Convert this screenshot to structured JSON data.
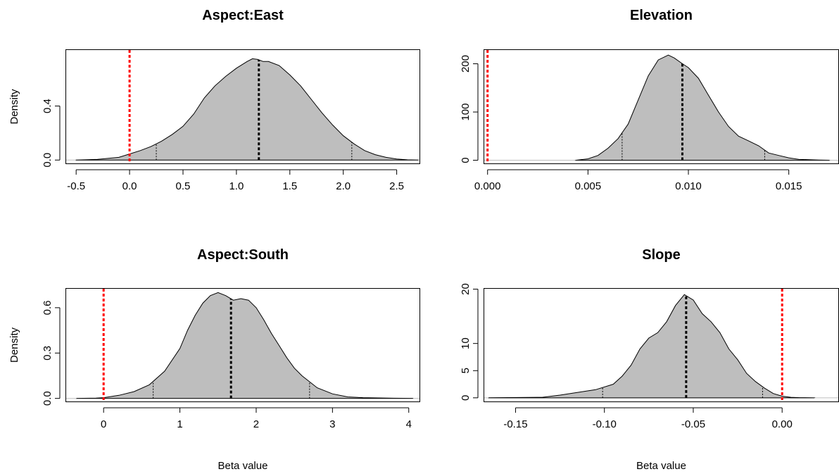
{
  "colors": {
    "fill": "#bebebe",
    "outline": "#000000",
    "zero_line": "#ff0000",
    "baseline": "#bebebe"
  },
  "chart_data": [
    {
      "type": "area",
      "title": "Aspect:East",
      "xlabel": "",
      "ylabel": "Density",
      "xlim": [
        -0.6,
        2.72
      ],
      "ylim": [
        -0.03,
        0.82
      ],
      "xticks": [
        -0.5,
        0.0,
        0.5,
        1.0,
        1.5,
        2.0,
        2.5
      ],
      "xtick_labels": [
        "-0.5",
        "0.0",
        "0.5",
        "1.0",
        "1.5",
        "2.0",
        "2.5"
      ],
      "yticks": [
        0.0,
        0.4
      ],
      "ytick_labels": [
        "0.0",
        "0.4"
      ],
      "grid": false,
      "legend": "none",
      "density": {
        "x": [
          -0.5,
          -0.3,
          -0.1,
          0.0,
          0.1,
          0.2,
          0.3,
          0.4,
          0.5,
          0.6,
          0.7,
          0.8,
          0.9,
          1.0,
          1.1,
          1.15,
          1.2,
          1.25,
          1.3,
          1.4,
          1.5,
          1.6,
          1.7,
          1.8,
          1.9,
          2.0,
          2.1,
          2.2,
          2.3,
          2.4,
          2.5,
          2.6,
          2.7
        ],
        "y": [
          0.0,
          0.005,
          0.02,
          0.045,
          0.07,
          0.1,
          0.14,
          0.19,
          0.25,
          0.34,
          0.46,
          0.55,
          0.62,
          0.68,
          0.73,
          0.75,
          0.745,
          0.73,
          0.73,
          0.7,
          0.63,
          0.55,
          0.45,
          0.35,
          0.26,
          0.18,
          0.12,
          0.07,
          0.04,
          0.02,
          0.008,
          0.002,
          0.0
        ]
      },
      "mean": 1.21,
      "ci": [
        0.25,
        2.08
      ],
      "reference": 0.0
    },
    {
      "type": "area",
      "title": "Elevation",
      "xlabel": "",
      "ylabel": "",
      "xlim": [
        -0.0002,
        0.0175
      ],
      "ylim": [
        -8,
        230
      ],
      "xticks": [
        0.0,
        0.005,
        0.01,
        0.015
      ],
      "xtick_labels": [
        "0.000",
        "0.005",
        "0.010",
        "0.015"
      ],
      "yticks": [
        0,
        100,
        200
      ],
      "ytick_labels": [
        "0",
        "100",
        "200"
      ],
      "grid": false,
      "legend": "none",
      "density": {
        "x": [
          0.0044,
          0.005,
          0.0055,
          0.006,
          0.0065,
          0.007,
          0.0075,
          0.008,
          0.0085,
          0.009,
          0.0093,
          0.0097,
          0.01,
          0.0105,
          0.011,
          0.0115,
          0.012,
          0.0125,
          0.013,
          0.0135,
          0.014,
          0.0145,
          0.015,
          0.0155,
          0.016,
          0.0165,
          0.017
        ],
        "y": [
          0,
          3,
          10,
          25,
          45,
          75,
          125,
          175,
          208,
          218,
          212,
          200,
          192,
          170,
          135,
          100,
          70,
          50,
          40,
          30,
          15,
          10,
          5,
          2,
          1,
          0.5,
          0
        ]
      },
      "mean": 0.0097,
      "ci": [
        0.0067,
        0.0138
      ],
      "reference": 0.0
    },
    {
      "type": "area",
      "title": "Aspect:South",
      "xlabel": "Beta value",
      "ylabel": "Density",
      "xlim": [
        -0.5,
        4.15
      ],
      "ylim": [
        -0.025,
        0.73
      ],
      "xticks": [
        0,
        1,
        2,
        3,
        4
      ],
      "xtick_labels": [
        "0",
        "1",
        "2",
        "3",
        "4"
      ],
      "yticks": [
        0.0,
        0.3,
        0.6
      ],
      "ytick_labels": [
        "0.0",
        "0.3",
        "0.6"
      ],
      "grid": false,
      "legend": "none",
      "density": {
        "x": [
          -0.35,
          -0.1,
          0.0,
          0.2,
          0.4,
          0.6,
          0.8,
          1.0,
          1.1,
          1.2,
          1.3,
          1.4,
          1.5,
          1.6,
          1.7,
          1.8,
          1.9,
          2.0,
          2.1,
          2.2,
          2.3,
          2.4,
          2.5,
          2.6,
          2.7,
          2.8,
          3.0,
          3.2,
          3.4,
          3.6,
          3.8,
          4.05
        ],
        "y": [
          0.0,
          0.002,
          0.005,
          0.02,
          0.045,
          0.09,
          0.18,
          0.33,
          0.45,
          0.55,
          0.63,
          0.68,
          0.7,
          0.68,
          0.65,
          0.66,
          0.65,
          0.6,
          0.52,
          0.43,
          0.35,
          0.27,
          0.2,
          0.15,
          0.11,
          0.07,
          0.03,
          0.01,
          0.005,
          0.003,
          0.001,
          0.0
        ]
      },
      "mean": 1.67,
      "ci": [
        0.65,
        2.7
      ],
      "reference": 0.0
    },
    {
      "type": "area",
      "title": "Slope",
      "xlabel": "Beta value",
      "ylabel": "",
      "xlim": [
        -0.168,
        0.032
      ],
      "ylim": [
        -0.8,
        20.2
      ],
      "xticks": [
        -0.15,
        -0.1,
        -0.05,
        0.0
      ],
      "xtick_labels": [
        "-0.15",
        "-0.10",
        "-0.05",
        "0.00"
      ],
      "yticks": [
        0,
        5,
        10,
        20
      ],
      "ytick_labels": [
        "0",
        "5",
        "10",
        "20"
      ],
      "grid": false,
      "legend": "none",
      "density": {
        "x": [
          -0.165,
          -0.135,
          -0.125,
          -0.115,
          -0.105,
          -0.095,
          -0.09,
          -0.085,
          -0.08,
          -0.075,
          -0.07,
          -0.065,
          -0.06,
          -0.055,
          -0.05,
          -0.045,
          -0.04,
          -0.035,
          -0.03,
          -0.025,
          -0.02,
          -0.015,
          -0.01,
          -0.005,
          0.0,
          0.005,
          0.01,
          0.018
        ],
        "y": [
          0.0,
          0.1,
          0.5,
          1.0,
          1.5,
          2.5,
          4,
          6,
          9,
          11,
          12,
          14,
          17,
          19,
          18,
          15.5,
          14,
          12,
          9,
          7,
          4.5,
          3,
          1.8,
          0.8,
          0.3,
          0.1,
          0.03,
          0.0
        ]
      },
      "mean": -0.054,
      "ci": [
        -0.101,
        -0.011
      ],
      "reference": 0.0
    }
  ]
}
